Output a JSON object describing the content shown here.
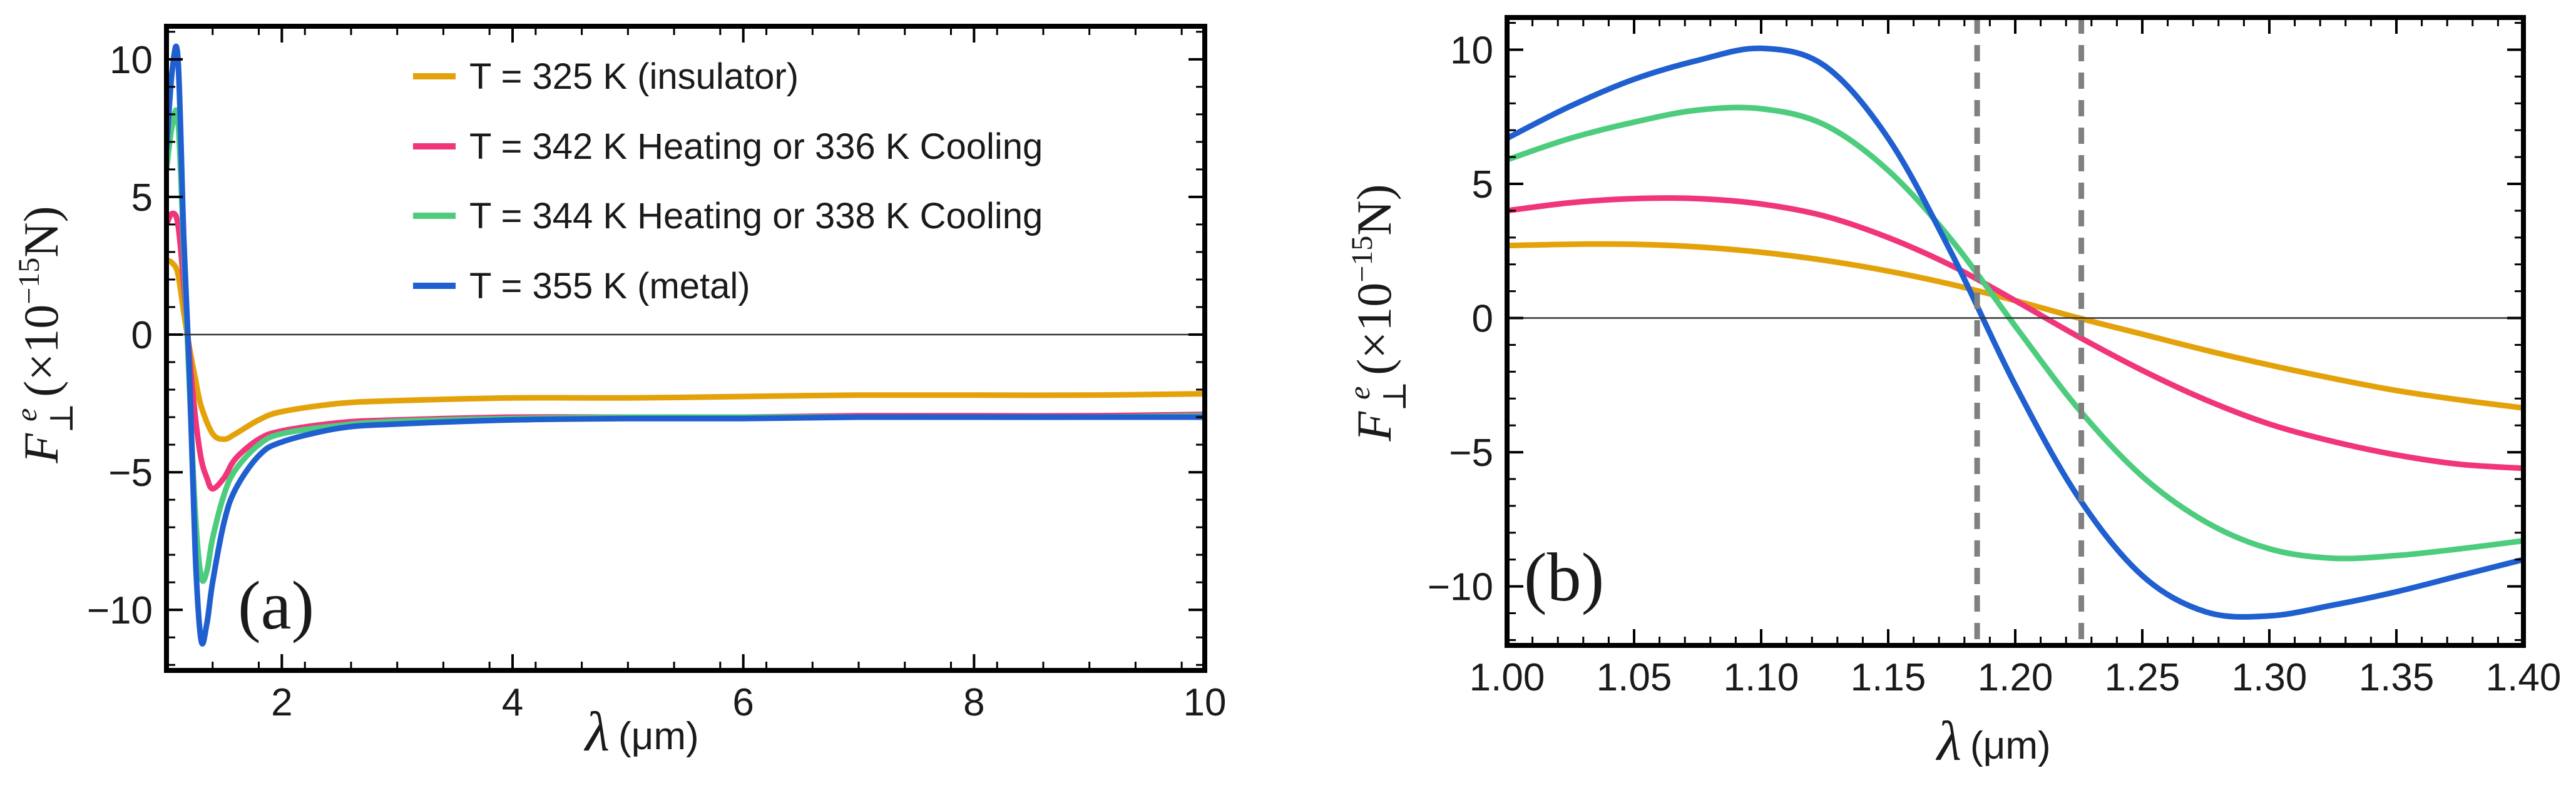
{
  "chart_data": [
    {
      "type": "line",
      "panel_label": "(a)",
      "xlabel": "λ (μm)",
      "ylabel": "F⊥e (×10⁻¹⁵N)",
      "xlim": [
        1.0,
        10.0
      ],
      "ylim": [
        -12.2,
        11.2
      ],
      "xticks": [
        2,
        4,
        6,
        8,
        10
      ],
      "yticks": [
        -10,
        -5,
        0,
        5,
        10
      ],
      "xtick_labels": [
        "2",
        "4",
        "6",
        "8",
        "10"
      ],
      "ytick_labels": [
        "−10",
        "−5",
        "0",
        "5",
        "10"
      ],
      "zero_line": true,
      "legend_position": "top-right",
      "series": [
        {
          "name": "T = 325 K (insulator)",
          "color": "#E3A20A",
          "x": [
            1.0,
            1.05,
            1.1,
            1.15,
            1.2,
            1.25,
            1.3,
            1.4,
            1.5,
            1.6,
            1.8,
            2.0,
            2.5,
            3.0,
            4.0,
            5.0,
            6.0,
            7.0,
            8.0,
            9.0,
            10.0
          ],
          "y": [
            2.7,
            2.6,
            2.2,
            0.8,
            -0.5,
            -1.6,
            -2.6,
            -3.6,
            -3.8,
            -3.6,
            -3.1,
            -2.8,
            -2.5,
            -2.4,
            -2.3,
            -2.3,
            -2.25,
            -2.2,
            -2.2,
            -2.2,
            -2.15
          ]
        },
        {
          "name": "T = 342 K Heating or 336 K Cooling",
          "color": "#F0357A",
          "x": [
            1.0,
            1.05,
            1.1,
            1.15,
            1.2,
            1.25,
            1.3,
            1.35,
            1.4,
            1.5,
            1.6,
            1.8,
            2.0,
            2.5,
            3.0,
            4.0,
            5.0,
            6.0,
            7.0,
            8.0,
            9.0,
            10.0
          ],
          "y": [
            4.0,
            4.4,
            4.0,
            1.8,
            -0.8,
            -3.0,
            -4.5,
            -5.2,
            -5.6,
            -5.2,
            -4.5,
            -3.8,
            -3.5,
            -3.2,
            -3.1,
            -3.0,
            -3.0,
            -3.0,
            -2.95,
            -2.95,
            -2.95,
            -2.9
          ]
        },
        {
          "name": "T = 344 K Heating or 338 K Cooling",
          "color": "#4DCC7E",
          "x": [
            1.0,
            1.05,
            1.1,
            1.15,
            1.2,
            1.25,
            1.3,
            1.35,
            1.4,
            1.5,
            1.6,
            1.8,
            2.0,
            2.5,
            3.0,
            4.0,
            5.0,
            6.0,
            7.0,
            8.0,
            9.0,
            10.0
          ],
          "y": [
            6.0,
            7.6,
            7.8,
            3.0,
            -2.0,
            -6.5,
            -8.8,
            -8.6,
            -7.4,
            -5.8,
            -4.9,
            -4.0,
            -3.6,
            -3.3,
            -3.15,
            -3.05,
            -3.0,
            -3.0,
            -3.0,
            -3.0,
            -3.0,
            -2.95
          ]
        },
        {
          "name": "T = 355 K (metal)",
          "color": "#1F5FCF",
          "x": [
            1.0,
            1.05,
            1.1,
            1.15,
            1.2,
            1.25,
            1.3,
            1.35,
            1.4,
            1.5,
            1.6,
            1.8,
            2.0,
            2.5,
            3.0,
            4.0,
            5.0,
            6.0,
            7.0,
            8.0,
            9.0,
            10.0
          ],
          "y": [
            6.7,
            9.6,
            10.0,
            3.5,
            -1.5,
            -8.0,
            -11.1,
            -10.5,
            -9.0,
            -6.8,
            -5.6,
            -4.4,
            -3.9,
            -3.4,
            -3.25,
            -3.1,
            -3.05,
            -3.05,
            -3.0,
            -3.0,
            -3.0,
            -3.0
          ]
        }
      ]
    },
    {
      "type": "line",
      "panel_label": "(b)",
      "xlabel": "λ (μm)",
      "ylabel": "F⊥e (×10⁻¹⁵N)",
      "xlim": [
        1.0,
        1.4
      ],
      "ylim": [
        -12.2,
        11.2
      ],
      "xticks": [
        1.0,
        1.05,
        1.1,
        1.15,
        1.2,
        1.25,
        1.3,
        1.35,
        1.4
      ],
      "yticks": [
        -10,
        -5,
        0,
        5,
        10
      ],
      "xtick_labels": [
        "1.00",
        "1.05",
        "1.10",
        "1.15",
        "1.20",
        "1.25",
        "1.30",
        "1.35",
        "1.40"
      ],
      "ytick_labels": [
        "−10",
        "−5",
        "0",
        "5",
        "10"
      ],
      "zero_line": true,
      "vertical_dashed_lines": [
        1.185,
        1.226
      ],
      "series": [
        {
          "name": "T = 325 K (insulator)",
          "color": "#E3A20A",
          "x": [
            1.0,
            1.025,
            1.05,
            1.075,
            1.1,
            1.125,
            1.15,
            1.175,
            1.2,
            1.225,
            1.25,
            1.275,
            1.3,
            1.325,
            1.35,
            1.375,
            1.4
          ],
          "y": [
            2.7,
            2.75,
            2.75,
            2.65,
            2.45,
            2.15,
            1.75,
            1.25,
            0.65,
            0.0,
            -0.6,
            -1.2,
            -1.75,
            -2.25,
            -2.7,
            -3.05,
            -3.35
          ]
        },
        {
          "name": "T = 342 K Heating or 336 K Cooling",
          "color": "#F0357A",
          "x": [
            1.0,
            1.025,
            1.05,
            1.075,
            1.1,
            1.125,
            1.15,
            1.175,
            1.2,
            1.225,
            1.25,
            1.275,
            1.3,
            1.325,
            1.35,
            1.375,
            1.4
          ],
          "y": [
            4.0,
            4.3,
            4.45,
            4.45,
            4.25,
            3.8,
            3.0,
            1.95,
            0.65,
            -0.7,
            -1.95,
            -3.05,
            -3.95,
            -4.6,
            -5.1,
            -5.45,
            -5.6
          ]
        },
        {
          "name": "T = 344 K Heating or 338 K Cooling",
          "color": "#4DCC7E",
          "x": [
            1.0,
            1.025,
            1.05,
            1.075,
            1.1,
            1.125,
            1.15,
            1.175,
            1.2,
            1.225,
            1.25,
            1.275,
            1.3,
            1.325,
            1.35,
            1.375,
            1.4
          ],
          "y": [
            5.9,
            6.7,
            7.3,
            7.75,
            7.8,
            7.2,
            5.5,
            2.9,
            -0.3,
            -3.4,
            -5.9,
            -7.6,
            -8.6,
            -8.95,
            -8.85,
            -8.6,
            -8.3
          ]
        },
        {
          "name": "T = 355 K (metal)",
          "color": "#1F5FCF",
          "x": [
            1.0,
            1.025,
            1.05,
            1.075,
            1.1,
            1.125,
            1.15,
            1.175,
            1.2,
            1.225,
            1.25,
            1.275,
            1.3,
            1.325,
            1.35,
            1.375,
            1.4
          ],
          "y": [
            6.7,
            7.9,
            8.9,
            9.6,
            10.05,
            9.4,
            6.7,
            2.4,
            -2.5,
            -6.7,
            -9.6,
            -10.95,
            -11.1,
            -10.7,
            -10.2,
            -9.6,
            -9.0
          ]
        }
      ]
    }
  ]
}
